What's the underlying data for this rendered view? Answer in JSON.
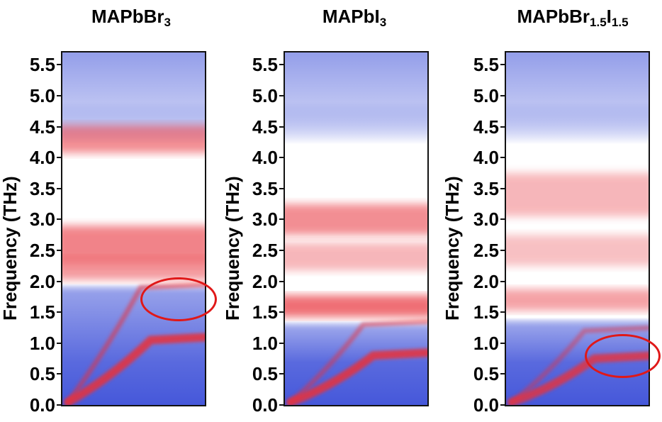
{
  "chart_data": [
    {
      "type": "heatmap",
      "title": "MAPbBr",
      "title_sub": "3",
      "ylabel": "Frequency (THz)",
      "ylim": [
        0.0,
        5.7
      ],
      "yticks": [
        "0.0",
        "0.5",
        "1.0",
        "1.5",
        "2.0",
        "2.5",
        "3.0",
        "3.5",
        "4.0",
        "4.5",
        "5.0",
        "5.5"
      ],
      "bands": [
        {
          "y": 4.3,
          "width": 0.45,
          "intensity": 0.55
        },
        {
          "y": 2.6,
          "width": 0.6,
          "intensity": 0.6
        },
        {
          "y": 2.2,
          "width": 0.35,
          "intensity": 0.5
        }
      ],
      "dispersion": [
        {
          "y_end": 1.9,
          "intensity": 0.55
        },
        {
          "y_end": 1.05,
          "intensity": 0.85
        }
      ],
      "low_edge": 1.85,
      "annotation": {
        "shape": "ellipse",
        "center_y": 1.7,
        "color": "#e01818"
      }
    },
    {
      "type": "heatmap",
      "title": "MAPbI",
      "title_sub": "3",
      "ylabel": "Frequency (THz)",
      "ylim": [
        0.0,
        5.7
      ],
      "yticks": [
        "0.0",
        "0.5",
        "1.0",
        "1.5",
        "2.0",
        "2.5",
        "3.0",
        "3.5",
        "4.0",
        "4.5",
        "5.0",
        "5.5"
      ],
      "bands": [
        {
          "y": 3.0,
          "width": 0.5,
          "intensity": 0.55
        },
        {
          "y": 2.4,
          "width": 0.45,
          "intensity": 0.35
        },
        {
          "y": 1.6,
          "width": 0.35,
          "intensity": 0.7
        }
      ],
      "dispersion": [
        {
          "y_end": 1.3,
          "intensity": 0.5
        },
        {
          "y_end": 0.8,
          "intensity": 0.85
        }
      ],
      "low_edge": 1.25,
      "annotation": null
    },
    {
      "type": "heatmap",
      "title": "MAPbBr",
      "title_sub": "1.5",
      "title_2": "I",
      "title_sub_2": "1.5",
      "ylabel": "Frequency (THz)",
      "ylim": [
        0.0,
        5.7
      ],
      "yticks": [
        "0.0",
        "0.5",
        "1.0",
        "1.5",
        "2.0",
        "2.5",
        "3.0",
        "3.5",
        "4.0",
        "4.5",
        "5.0",
        "5.5"
      ],
      "bands": [
        {
          "y": 3.4,
          "width": 0.7,
          "intensity": 0.35
        },
        {
          "y": 2.5,
          "width": 0.5,
          "intensity": 0.3
        },
        {
          "y": 1.7,
          "width": 0.35,
          "intensity": 0.45
        }
      ],
      "dispersion": [
        {
          "y_end": 1.2,
          "intensity": 0.45
        },
        {
          "y_end": 0.75,
          "intensity": 0.8
        }
      ],
      "low_edge": 1.3,
      "annotation": {
        "shape": "ellipse",
        "center_y": 0.8,
        "color": "#e01818"
      }
    }
  ],
  "colors": {
    "low": "#3c4fd8",
    "mid": "#ffffff",
    "high": "#e8333a",
    "frame": "#111111"
  }
}
